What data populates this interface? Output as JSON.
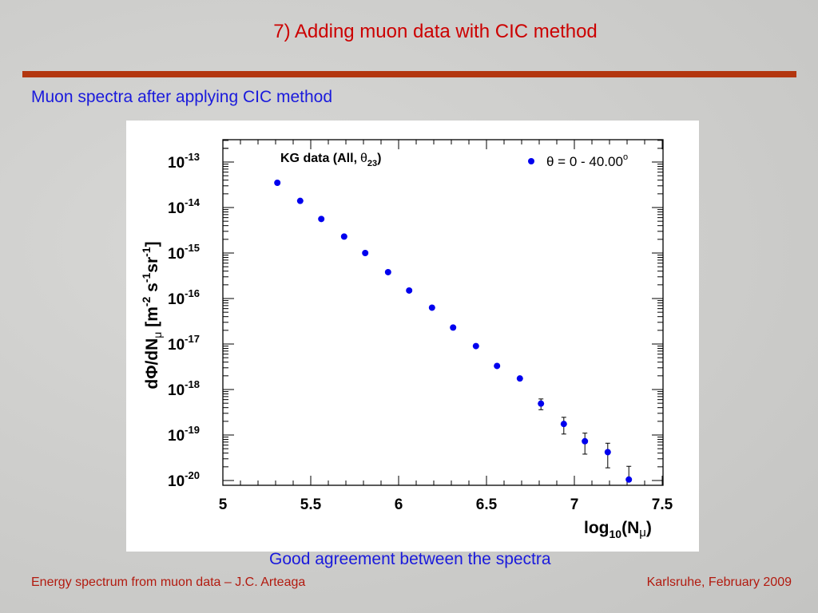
{
  "slide": {
    "title": "7) Adding muon data with CIC method",
    "subtitle": "Muon spectra after applying CIC method",
    "caption": "Good agreement between the spectra",
    "footer_left": "Energy spectrum from muon data – J.C. Arteaga",
    "footer_right": "Karlsruhe,  February 2009"
  },
  "colors": {
    "title": "#cc0000",
    "rule": "#b3360f",
    "subtitle": "#1a1adc",
    "footer": "#b21a0f",
    "marker": "#0000ee"
  },
  "chart_data": {
    "type": "scatter",
    "title": "KG data (All, θ 23)",
    "xlabel": "log10(Nμ)",
    "ylabel": "dΦ/dNμ [m-2 s-1 sr-1]",
    "xlim": [
      5,
      7.5
    ],
    "ylim": [
      1e-20,
      2e-13
    ],
    "yscale": "log",
    "grid": false,
    "legend_position": "top-right",
    "x_ticks": [
      "5",
      "5.5",
      "6",
      "6.5",
      "7",
      "7.5"
    ],
    "y_ticks": [
      {
        "base": "10",
        "exp": "-13"
      },
      {
        "base": "10",
        "exp": "-14"
      },
      {
        "base": "10",
        "exp": "-15"
      },
      {
        "base": "10",
        "exp": "-16"
      },
      {
        "base": "10",
        "exp": "-17"
      },
      {
        "base": "10",
        "exp": "-18"
      },
      {
        "base": "10",
        "exp": "-19"
      },
      {
        "base": "10",
        "exp": "-20"
      }
    ],
    "series": [
      {
        "name": "θ = 0 - 40.00°",
        "x": [
          5.31,
          5.44,
          5.56,
          5.69,
          5.81,
          5.94,
          6.06,
          6.19,
          6.31,
          6.44,
          6.56,
          6.69,
          6.81,
          6.94,
          7.06,
          7.19,
          7.31
        ],
        "y": [
          3.5e-14,
          1.4e-14,
          5.6e-15,
          2.3e-15,
          1e-15,
          3.8e-16,
          1.5e-16,
          6.3e-17,
          2.3e-17,
          9e-18,
          3.3e-18,
          1.75e-18,
          4.9e-19,
          1.75e-19,
          7.3e-20,
          4.2e-20,
          1.05e-20
        ],
        "y_err_low": [
          null,
          null,
          null,
          null,
          null,
          null,
          null,
          null,
          null,
          null,
          null,
          null,
          3.6e-19,
          1.05e-19,
          3.8e-20,
          1.9e-20,
          1e-20
        ],
        "y_err_high": [
          null,
          null,
          null,
          null,
          null,
          null,
          null,
          null,
          null,
          null,
          null,
          null,
          6.2e-19,
          2.45e-19,
          1.1e-19,
          6.6e-20,
          2.05e-20
        ]
      }
    ],
    "annotation": {
      "prefix": "KG data (All,",
      "theta": "θ",
      "sub": "23",
      "suffix": ")"
    },
    "axis_labels": {
      "x_base": "log",
      "x_sub": "10",
      "x_rest_open": "(N",
      "x_mu": "μ",
      "x_close": ")",
      "y_part1": "dΦ/dN",
      "y_mu": "μ",
      "y_bracket": " [m",
      "y_exp1": "-2",
      "y_s": " s",
      "y_exp2": "-1",
      "y_sr": "sr",
      "y_exp3": "-1",
      "y_close": "]"
    },
    "legend": {
      "text": "θ = 0 - 40.00",
      "degree": "o"
    }
  }
}
